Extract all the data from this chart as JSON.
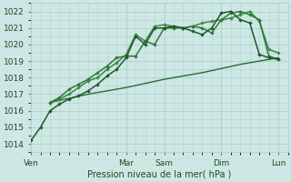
{
  "background_color": "#cde8e4",
  "grid_color": "#b0d4cf",
  "line_color1": "#1a5c2a",
  "line_color2": "#236b30",
  "line_color3": "#2d7a38",
  "line_color4": "#3a8a42",
  "line_color_flat": "#2a6a34",
  "title": "Pression niveau de la mer( hPa )",
  "ylim": [
    1013.5,
    1022.5
  ],
  "yticks": [
    1014,
    1015,
    1016,
    1017,
    1018,
    1019,
    1020,
    1021,
    1022
  ],
  "x_day_labels": [
    "Ven",
    "Mar",
    "Sam",
    "Dim",
    "Lun"
  ],
  "x_day_positions": [
    0,
    10,
    14,
    20,
    26
  ],
  "xlim": [
    0,
    27
  ],
  "series1_x": [
    0,
    1,
    2,
    3,
    4,
    5,
    6,
    7,
    8,
    9,
    10,
    11,
    12,
    13,
    14,
    15,
    16,
    17,
    18,
    19,
    20,
    21,
    22,
    23,
    24,
    25,
    26
  ],
  "series1_y": [
    1014.2,
    1015.0,
    1016.0,
    1016.4,
    1016.7,
    1016.9,
    1017.2,
    1017.6,
    1018.1,
    1018.5,
    1019.2,
    1020.5,
    1020.0,
    1021.0,
    1021.0,
    1021.1,
    1021.0,
    1020.8,
    1020.6,
    1021.0,
    1021.9,
    1022.0,
    1021.5,
    1021.3,
    1019.4,
    1019.2,
    1019.1
  ],
  "series2_x": [
    2,
    3,
    4,
    5,
    6,
    7,
    8,
    9,
    10,
    11,
    12,
    13,
    14,
    15,
    16,
    17,
    18,
    19,
    20,
    21,
    22,
    23,
    24,
    25,
    26
  ],
  "series2_y": [
    1016.5,
    1016.8,
    1017.3,
    1017.6,
    1017.9,
    1018.3,
    1018.7,
    1019.2,
    1019.3,
    1019.3,
    1020.2,
    1020.0,
    1021.0,
    1021.0,
    1021.0,
    1021.1,
    1021.0,
    1020.7,
    1021.5,
    1021.9,
    1022.0,
    1021.8,
    1021.5,
    1019.3,
    1019.1
  ],
  "series3_x": [
    2,
    3,
    4,
    5,
    6,
    7,
    8,
    9,
    10,
    11,
    12,
    13,
    14,
    15,
    16,
    17,
    18,
    19,
    20,
    21,
    22,
    23,
    24,
    25,
    26
  ],
  "series3_y": [
    1016.5,
    1016.7,
    1017.0,
    1017.4,
    1017.8,
    1018.0,
    1018.5,
    1018.9,
    1019.4,
    1020.6,
    1020.2,
    1021.1,
    1021.2,
    1021.1,
    1021.0,
    1021.1,
    1021.3,
    1021.4,
    1021.5,
    1021.6,
    1021.8,
    1022.0,
    1021.4,
    1019.7,
    1019.5
  ],
  "series_flat_x": [
    2,
    6,
    10,
    14,
    18,
    22,
    26
  ],
  "series_flat_y": [
    1016.5,
    1017.0,
    1017.4,
    1017.9,
    1018.3,
    1018.8,
    1019.2
  ]
}
